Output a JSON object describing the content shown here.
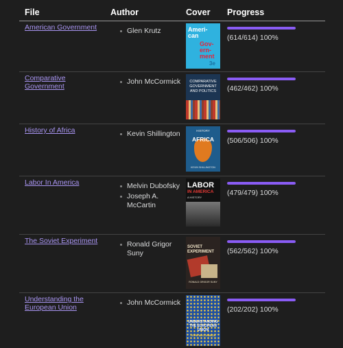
{
  "headers": {
    "file": "File",
    "author": "Author",
    "cover": "Cover",
    "progress": "Progress"
  },
  "colors": {
    "accent": "#8a5cf5",
    "link": "#a995f2"
  },
  "rows": [
    {
      "file": "American Government",
      "authors": [
        "Glen Krutz"
      ],
      "progress_text": "(614/614) 100%",
      "progress": 1.0,
      "cover_text": {
        "a": "Ameri-",
        "b": "can",
        "c": "Gov-",
        "d": "ern-",
        "e": "ment",
        "f": "3e"
      }
    },
    {
      "file": "Comparative Government",
      "authors": [
        "John McCormick"
      ],
      "progress_text": "(462/462) 100%",
      "progress": 1.0,
      "cover_text": {
        "a": "COMPARATIVE",
        "b": "GOVERNMENT",
        "c": "AND POLITICS"
      }
    },
    {
      "file": "History of Africa",
      "authors": [
        "Kevin Shillington"
      ],
      "progress_text": "(506/506) 100%",
      "progress": 1.0,
      "cover_text": {
        "a": "HISTORY",
        "b": "AFRICA",
        "c": "KEVIN SHILLINGTON"
      }
    },
    {
      "file": "Labor In America",
      "authors": [
        "Melvin Dubofsky",
        "Joseph A. McCartin"
      ],
      "progress_text": "(479/479) 100%",
      "progress": 1.0,
      "cover_text": {
        "a": "LABOR",
        "b": "IN AMERICA",
        "c": "A HISTORY"
      }
    },
    {
      "file": "The Soviet Experiment",
      "authors": [
        "Ronald Grigor Suny"
      ],
      "progress_text": "(562/562) 100%",
      "progress": 1.0,
      "cover_text": {
        "a": "SOVIET EXPERIMENT",
        "b": "RONALD GRIGOR SUNY"
      }
    },
    {
      "file": "Understanding the European Union",
      "authors": [
        "John McCormick"
      ],
      "progress_text": "(202/202) 100%",
      "progress": 1.0,
      "cover_text": {
        "a": "UNDERSTANDING",
        "b": "THE EUROPEAN",
        "c": "UNION",
        "d": "JOHN McCORMICK"
      }
    }
  ]
}
